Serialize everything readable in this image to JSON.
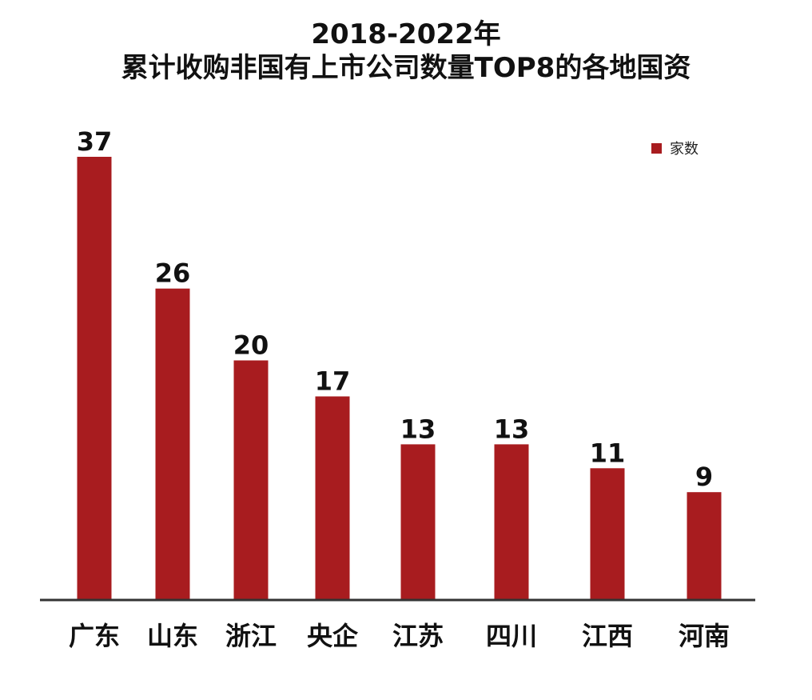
{
  "chart_data": {
    "type": "bar",
    "title_line1": "2018-2022年",
    "title_line2": "累计收购非国有上市公司数量TOP8的各地国资",
    "categories": [
      "广东",
      "山东",
      "浙江",
      "央企",
      "江苏",
      "四川",
      "江西",
      "河南"
    ],
    "series": [
      {
        "name": "家数",
        "values": [
          37,
          26,
          20,
          17,
          13,
          13,
          11,
          9
        ],
        "color": "#a81c1f"
      }
    ],
    "xlabel": "",
    "ylabel": "",
    "ylim": [
      0,
      37
    ],
    "grid": false,
    "legend_position": "top-right",
    "data_labels": true
  }
}
